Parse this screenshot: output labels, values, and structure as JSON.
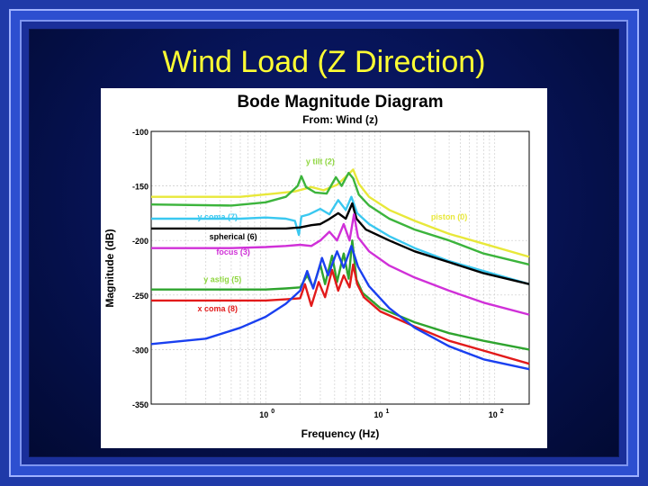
{
  "slide": {
    "title": "Wind Load (Z Direction)"
  },
  "chart_data": {
    "type": "line",
    "title": "Bode Magnitude Diagram",
    "subtitle": "From: Wind (z)",
    "xlabel": "Frequency (Hz)",
    "ylabel": "Magnitude (dB)",
    "xscale": "log",
    "xlim": [
      0.1,
      200
    ],
    "ylim": [
      -350,
      -100
    ],
    "yticks": [
      -100,
      -150,
      -200,
      -250,
      -300,
      -350
    ],
    "xticks": [
      1,
      10,
      100
    ],
    "xtick_labels": [
      {
        "base": "10",
        "exp": "0"
      },
      {
        "base": "10",
        "exp": "1"
      },
      {
        "base": "10",
        "exp": "2"
      }
    ],
    "grid": true,
    "series": [
      {
        "name": "piston (0)",
        "color": "#e8e83a",
        "points": [
          [
            0.1,
            -160
          ],
          [
            0.6,
            -160
          ],
          [
            1.2,
            -157
          ],
          [
            1.8,
            -155
          ],
          [
            2.5,
            -151
          ],
          [
            3.2,
            -154
          ],
          [
            4.2,
            -149
          ],
          [
            5.2,
            -140
          ],
          [
            5.8,
            -135
          ],
          [
            6.5,
            -148
          ],
          [
            8,
            -160
          ],
          [
            12,
            -172
          ],
          [
            20,
            -182
          ],
          [
            40,
            -194
          ],
          [
            80,
            -203
          ],
          [
            200,
            -215
          ]
        ]
      },
      {
        "name": "y tilt (2)",
        "color": "#3cb43c",
        "points": [
          [
            0.1,
            -167
          ],
          [
            0.5,
            -168
          ],
          [
            1.0,
            -165
          ],
          [
            1.5,
            -160
          ],
          [
            1.9,
            -150
          ],
          [
            2.05,
            -141
          ],
          [
            2.25,
            -151
          ],
          [
            2.7,
            -156
          ],
          [
            3.4,
            -157
          ],
          [
            4.1,
            -142
          ],
          [
            4.6,
            -150
          ],
          [
            5.3,
            -138
          ],
          [
            5.8,
            -143
          ],
          [
            6.5,
            -158
          ],
          [
            8,
            -168
          ],
          [
            12,
            -180
          ],
          [
            20,
            -190
          ],
          [
            40,
            -200
          ],
          [
            80,
            -212
          ],
          [
            200,
            -222
          ]
        ]
      },
      {
        "name": "y coma (7)",
        "color": "#3ac8f0",
        "points": [
          [
            0.1,
            -180
          ],
          [
            0.6,
            -180
          ],
          [
            1.0,
            -179
          ],
          [
            1.5,
            -180
          ],
          [
            1.8,
            -182
          ],
          [
            1.95,
            -195
          ],
          [
            2.05,
            -178
          ],
          [
            2.4,
            -176
          ],
          [
            3.0,
            -171
          ],
          [
            3.6,
            -176
          ],
          [
            4.3,
            -163
          ],
          [
            5.0,
            -172
          ],
          [
            5.6,
            -160
          ],
          [
            6.3,
            -175
          ],
          [
            8,
            -185
          ],
          [
            12,
            -196
          ],
          [
            20,
            -207
          ],
          [
            40,
            -219
          ],
          [
            80,
            -228
          ],
          [
            200,
            -240
          ]
        ]
      },
      {
        "name": "spherical (6)",
        "color": "#000000",
        "points": [
          [
            0.1,
            -189
          ],
          [
            0.5,
            -189
          ],
          [
            1.0,
            -189
          ],
          [
            1.5,
            -189
          ],
          [
            2.0,
            -188
          ],
          [
            2.5,
            -186
          ],
          [
            3.0,
            -185
          ],
          [
            3.5,
            -181
          ],
          [
            4.3,
            -175
          ],
          [
            5.0,
            -180
          ],
          [
            5.7,
            -166
          ],
          [
            6.2,
            -180
          ],
          [
            7.5,
            -190
          ],
          [
            12,
            -200
          ],
          [
            20,
            -210
          ],
          [
            40,
            -220
          ],
          [
            80,
            -230
          ],
          [
            200,
            -240
          ]
        ]
      },
      {
        "name": "focus (3)",
        "color": "#d030d8",
        "points": [
          [
            0.1,
            -207
          ],
          [
            0.5,
            -207
          ],
          [
            1.0,
            -206
          ],
          [
            1.5,
            -205
          ],
          [
            2.0,
            -204
          ],
          [
            2.5,
            -205
          ],
          [
            3.0,
            -200
          ],
          [
            3.6,
            -192
          ],
          [
            4.2,
            -200
          ],
          [
            4.8,
            -185
          ],
          [
            5.4,
            -200
          ],
          [
            5.9,
            -176
          ],
          [
            6.4,
            -197
          ],
          [
            8,
            -210
          ],
          [
            12,
            -223
          ],
          [
            20,
            -234
          ],
          [
            40,
            -246
          ],
          [
            80,
            -257
          ],
          [
            200,
            -268
          ]
        ]
      },
      {
        "name": "y astig (5)",
        "color": "#2ea42e",
        "points": [
          [
            0.1,
            -245
          ],
          [
            0.6,
            -245
          ],
          [
            1.0,
            -245
          ],
          [
            1.5,
            -244
          ],
          [
            2.0,
            -243
          ],
          [
            2.3,
            -232
          ],
          [
            2.6,
            -243
          ],
          [
            3.0,
            -222
          ],
          [
            3.3,
            -240
          ],
          [
            3.8,
            -214
          ],
          [
            4.2,
            -238
          ],
          [
            4.8,
            -212
          ],
          [
            5.3,
            -235
          ],
          [
            5.7,
            -200
          ],
          [
            6.2,
            -236
          ],
          [
            7,
            -248
          ],
          [
            10,
            -262
          ],
          [
            20,
            -275
          ],
          [
            40,
            -285
          ],
          [
            80,
            -292
          ],
          [
            200,
            -300
          ]
        ]
      },
      {
        "name": "x coma (8)",
        "color": "#e21a1a",
        "points": [
          [
            0.1,
            -255
          ],
          [
            0.6,
            -255
          ],
          [
            1.0,
            -255
          ],
          [
            1.5,
            -254
          ],
          [
            2.0,
            -253
          ],
          [
            2.2,
            -240
          ],
          [
            2.5,
            -260
          ],
          [
            2.9,
            -238
          ],
          [
            3.3,
            -252
          ],
          [
            3.8,
            -227
          ],
          [
            4.3,
            -246
          ],
          [
            4.8,
            -232
          ],
          [
            5.4,
            -243
          ],
          [
            5.8,
            -222
          ],
          [
            6.3,
            -240
          ],
          [
            7.2,
            -252
          ],
          [
            10,
            -265
          ],
          [
            20,
            -279
          ],
          [
            40,
            -292
          ],
          [
            80,
            -301
          ],
          [
            200,
            -313
          ]
        ]
      },
      {
        "name": "",
        "color": "#1a40f0",
        "points": [
          [
            0.1,
            -295
          ],
          [
            0.3,
            -290
          ],
          [
            0.6,
            -280
          ],
          [
            1.0,
            -270
          ],
          [
            1.5,
            -258
          ],
          [
            2.0,
            -246
          ],
          [
            2.3,
            -228
          ],
          [
            2.6,
            -244
          ],
          [
            3.1,
            -216
          ],
          [
            3.5,
            -232
          ],
          [
            4.2,
            -210
          ],
          [
            4.8,
            -225
          ],
          [
            5.6,
            -205
          ],
          [
            6.4,
            -224
          ],
          [
            8,
            -242
          ],
          [
            12,
            -262
          ],
          [
            20,
            -280
          ],
          [
            40,
            -297
          ],
          [
            80,
            -309
          ],
          [
            200,
            -318
          ]
        ]
      }
    ],
    "annotations": [
      {
        "text": "y tilt (2)",
        "color": "#8fd640",
        "x": 3.0,
        "y": -130
      },
      {
        "text": "piston (0)",
        "color": "#e8e83a",
        "x": 40,
        "y": -181
      },
      {
        "text": "y coma (7)",
        "color": "#3ac8f0",
        "x": 0.38,
        "y": -181
      },
      {
        "text": "spherical (6)",
        "color": "#000000",
        "x": 0.52,
        "y": -199
      },
      {
        "text": "focus (3)",
        "color": "#d030d8",
        "x": 0.52,
        "y": -213
      },
      {
        "text": "y astig (5)",
        "color": "#8fd640",
        "x": 0.42,
        "y": -238
      },
      {
        "text": "x coma (8)",
        "color": "#e21a1a",
        "x": 0.38,
        "y": -265
      }
    ]
  }
}
